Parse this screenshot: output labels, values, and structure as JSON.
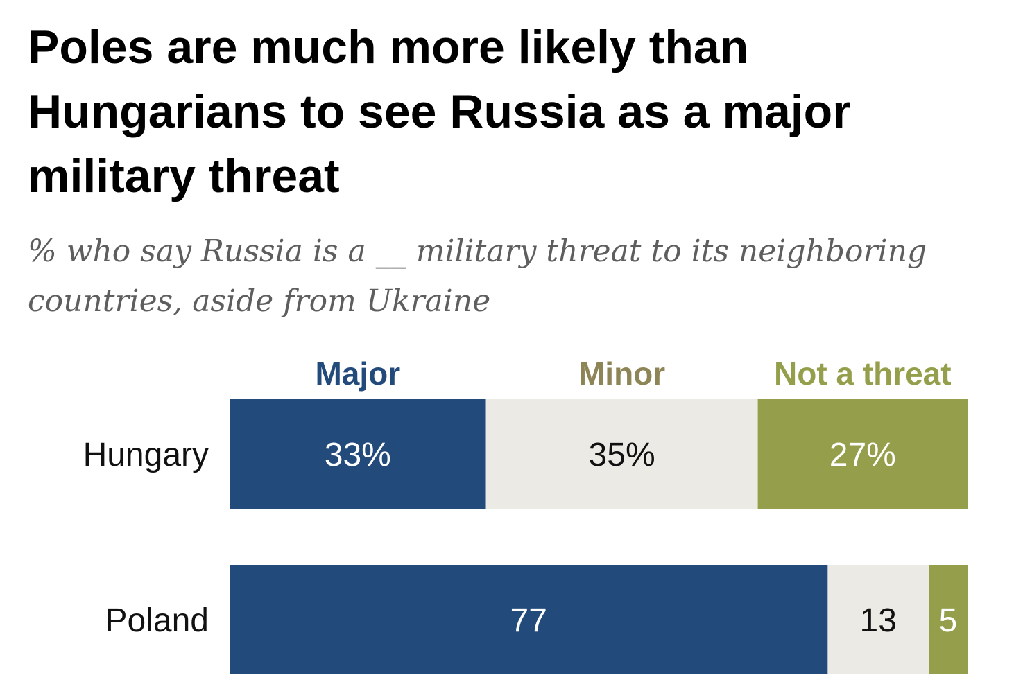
{
  "title": "Poles are much more likely than Hungarians to see Russia as a major military threat",
  "subtitle": "% who say Russia is a __ military threat to its neighboring countries, aside from Ukraine",
  "colors": {
    "major": "#224a7b",
    "minor": "#eceae4",
    "not_a_threat": "#959f4b",
    "minor_header": "#8e8557"
  },
  "chart_data": {
    "type": "bar",
    "orientation": "horizontal",
    "stacked": true,
    "categories": [
      "Hungary",
      "Poland"
    ],
    "series": [
      {
        "name": "Major",
        "values": [
          33,
          77
        ],
        "labels": [
          "33%",
          "77"
        ]
      },
      {
        "name": "Minor",
        "values": [
          35,
          13
        ],
        "labels": [
          "35%",
          "13"
        ]
      },
      {
        "name": "Not a threat",
        "values": [
          27,
          5
        ],
        "labels": [
          "27%",
          "5"
        ]
      }
    ],
    "legend_position": "top",
    "grid": false
  }
}
